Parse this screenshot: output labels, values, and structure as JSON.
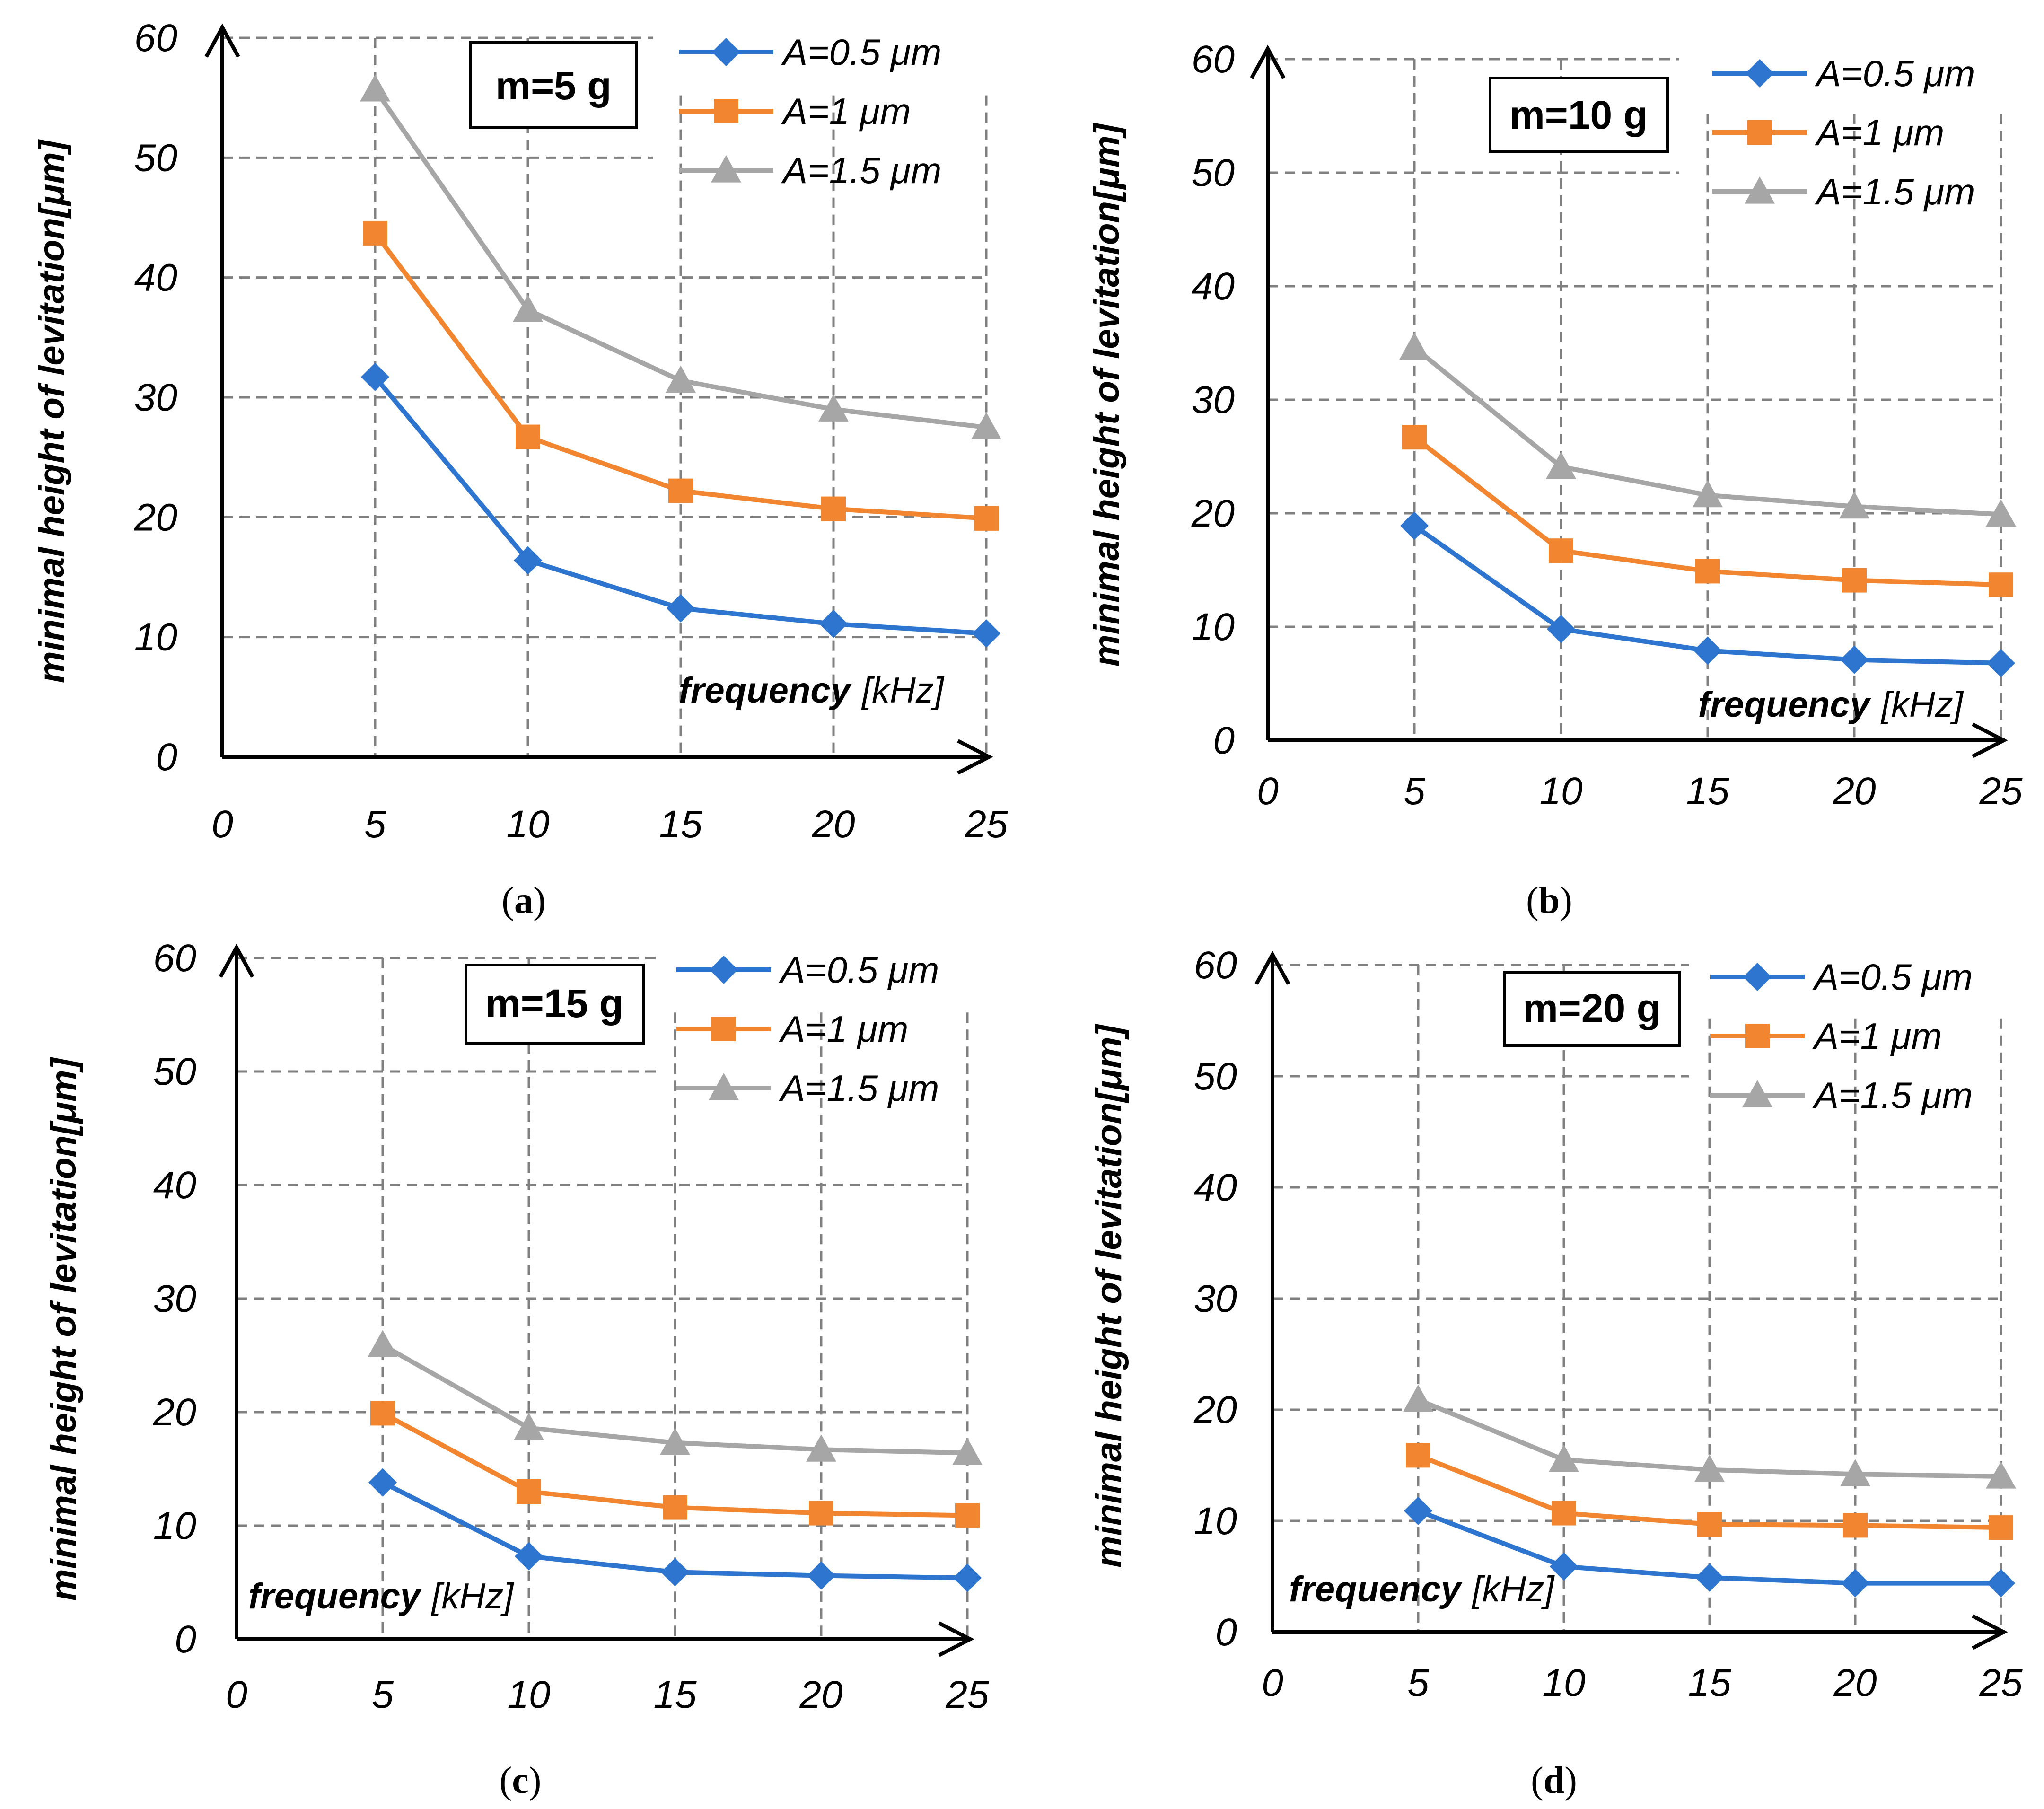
{
  "chart_data": [
    {
      "type": "line",
      "panel_label": "a",
      "title": "m=5 g",
      "xlabel_bold": "frequency",
      "xlabel_unit": "[kHz]",
      "ylabel": "minimal height of levitation[μm]",
      "x_ticks": [
        "0",
        "5",
        "10",
        "15",
        "20",
        "25"
      ],
      "y_ticks": [
        "0",
        "10",
        "20",
        "30",
        "40",
        "50",
        "60"
      ],
      "xlim": [
        0,
        25
      ],
      "ylim": [
        0,
        60
      ],
      "x": [
        5,
        10,
        15,
        20,
        25
      ],
      "series": [
        {
          "name": "A=0.5 μm",
          "color": "#2e75d0",
          "marker": "diamond",
          "values": [
            31.7,
            16.4,
            12.4,
            11.1,
            10.3
          ]
        },
        {
          "name": "A=1 μm",
          "color": "#f28530",
          "marker": "square",
          "values": [
            43.7,
            26.7,
            22.2,
            20.7,
            19.9
          ]
        },
        {
          "name": "A=1.5 μm",
          "color": "#a6a6a6",
          "marker": "triangle",
          "values": [
            55.7,
            37.3,
            31.4,
            29.0,
            27.5
          ]
        }
      ]
    },
    {
      "type": "line",
      "panel_label": "b",
      "title": "m=10 g",
      "xlabel_bold": "frequency",
      "xlabel_unit": "[kHz]",
      "ylabel": "minimal height of levitation[μm]",
      "x_ticks": [
        "0",
        "5",
        "10",
        "15",
        "20",
        "25"
      ],
      "y_ticks": [
        "0",
        "10",
        "20",
        "30",
        "40",
        "50",
        "60"
      ],
      "xlim": [
        0,
        25
      ],
      "ylim": [
        0,
        60
      ],
      "x": [
        5,
        10,
        15,
        20,
        25
      ],
      "series": [
        {
          "name": "A=0.5 μm",
          "color": "#2e75d0",
          "marker": "diamond",
          "values": [
            18.9,
            9.8,
            7.9,
            7.1,
            6.8
          ]
        },
        {
          "name": "A=1 μm",
          "color": "#f28530",
          "marker": "square",
          "values": [
            26.7,
            16.7,
            14.9,
            14.1,
            13.7
          ]
        },
        {
          "name": "A=1.5 μm",
          "color": "#a6a6a6",
          "marker": "triangle",
          "values": [
            34.6,
            24.1,
            21.6,
            20.6,
            19.9
          ]
        }
      ]
    },
    {
      "type": "line",
      "panel_label": "c",
      "title": "m=15 g",
      "xlabel_bold": "frequency",
      "xlabel_unit": "[kHz]",
      "ylabel": "minimal height of levitation[μm]",
      "x_ticks": [
        "0",
        "5",
        "10",
        "15",
        "20",
        "25"
      ],
      "y_ticks": [
        "0",
        "10",
        "20",
        "30",
        "40",
        "50",
        "60"
      ],
      "xlim": [
        0,
        25
      ],
      "ylim": [
        0,
        60
      ],
      "x": [
        5,
        10,
        15,
        20,
        25
      ],
      "series": [
        {
          "name": "A=0.5 μm",
          "color": "#2e75d0",
          "marker": "diamond",
          "values": [
            13.8,
            7.3,
            5.9,
            5.6,
            5.4
          ]
        },
        {
          "name": "A=1 μm",
          "color": "#f28530",
          "marker": "square",
          "values": [
            19.9,
            13.0,
            11.6,
            11.1,
            10.9
          ]
        },
        {
          "name": "A=1.5 μm",
          "color": "#a6a6a6",
          "marker": "triangle",
          "values": [
            25.9,
            18.6,
            17.3,
            16.7,
            16.4
          ]
        }
      ]
    },
    {
      "type": "line",
      "panel_label": "d",
      "title": "m=20 g",
      "xlabel_bold": "frequency",
      "xlabel_unit": "[kHz]",
      "ylabel": "minimal height of levitation[μm]",
      "x_ticks": [
        "0",
        "5",
        "10",
        "15",
        "20",
        "25"
      ],
      "y_ticks": [
        "0",
        "10",
        "20",
        "30",
        "40",
        "50",
        "60"
      ],
      "xlim": [
        0,
        25
      ],
      "ylim": [
        0,
        60
      ],
      "x": [
        5,
        10,
        15,
        20,
        25
      ],
      "series": [
        {
          "name": "A=0.5 μm",
          "color": "#2e75d0",
          "marker": "diamond",
          "values": [
            10.9,
            5.9,
            4.9,
            4.4,
            4.4
          ]
        },
        {
          "name": "A=1 μm",
          "color": "#f28530",
          "marker": "square",
          "values": [
            15.9,
            10.7,
            9.7,
            9.6,
            9.4
          ]
        },
        {
          "name": "A=1.5 μm",
          "color": "#a6a6a6",
          "marker": "triangle",
          "values": [
            20.9,
            15.5,
            14.6,
            14.2,
            14.0
          ]
        }
      ]
    }
  ]
}
